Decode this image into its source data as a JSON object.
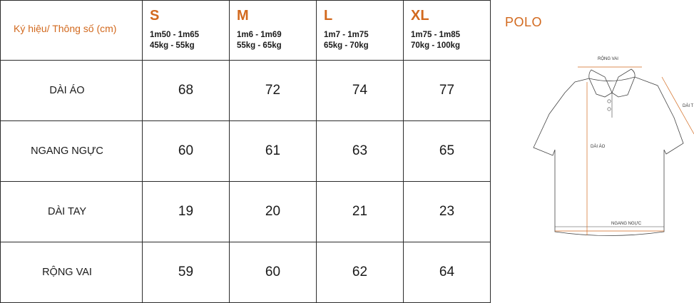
{
  "table": {
    "header_label": "Ký hiệu/ Thông số (cm)",
    "sizes": [
      {
        "name": "S",
        "height": "1m50 - 1m65",
        "weight": "45kg - 55kg"
      },
      {
        "name": "M",
        "height": "1m6 - 1m69",
        "weight": "55kg - 65kg"
      },
      {
        "name": "L",
        "height": "1m7 - 1m75",
        "weight": "65kg - 70kg"
      },
      {
        "name": "XL",
        "height": "1m75 - 1m85",
        "weight": "70kg - 100kg"
      }
    ],
    "rows": [
      {
        "label": "DÀI ÁO",
        "values": [
          "68",
          "72",
          "74",
          "77"
        ]
      },
      {
        "label": "NGANG NGỰC",
        "values": [
          "60",
          "61",
          "63",
          "65"
        ]
      },
      {
        "label": "DÀI TAY",
        "values": [
          "19",
          "20",
          "21",
          "23"
        ]
      },
      {
        "label": "RỘNG VAI",
        "values": [
          "59",
          "60",
          "62",
          "64"
        ]
      }
    ]
  },
  "product": {
    "title": "POLO",
    "diagram_labels": {
      "shoulder": "RỘNG VAI",
      "sleeve": "DÀI T",
      "length": "DÀI ÁO",
      "chest": "NGANG NGỰC"
    }
  },
  "colors": {
    "accent": "#d2691e",
    "border": "#2b2b2b",
    "text": "#1a1a1a"
  }
}
